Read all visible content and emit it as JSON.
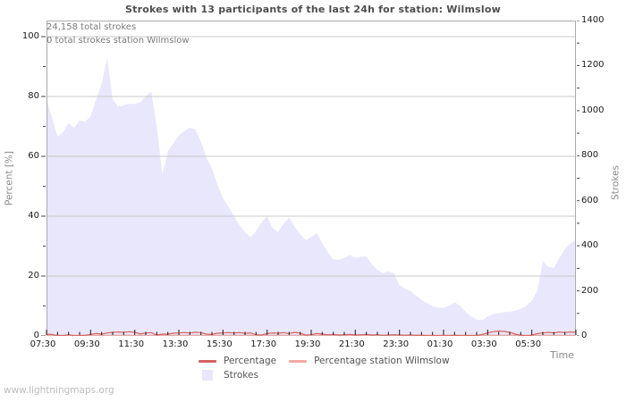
{
  "page": {
    "watermark": "www.lightningmaps.org"
  },
  "chart_data": {
    "type": "area",
    "title": "Strokes with 13 participants of the last 24h for station: Wilmslow",
    "annotations": [
      "24,158 total strokes",
      "0 total strokes station Wilmslow"
    ],
    "x_axis": {
      "label": "Time",
      "start": "07:30",
      "interval_minutes": 15,
      "points": 97,
      "tick_labels": [
        "07:30",
        "09:30",
        "11:30",
        "13:30",
        "15:30",
        "17:30",
        "19:30",
        "21:30",
        "23:30",
        "01:30",
        "03:30",
        "05:30"
      ],
      "tick_index_step": 8,
      "minor_tick_index_step": 2
    },
    "left_axis": {
      "label": "Percent [%]",
      "tick_labels": [
        "0",
        "20",
        "40",
        "60",
        "80",
        "100"
      ],
      "max": 100,
      "major_step": 20,
      "minor_step": 10,
      "top_fraction": 0.949
    },
    "right_axis": {
      "label": "Strokes",
      "tick_labels": [
        "0",
        "200",
        "400",
        "600",
        "800",
        "1000",
        "1200",
        "1400"
      ],
      "max": 1400,
      "major_step": 200,
      "minor_step": 100
    },
    "grid": {
      "color": "#c9c9c9",
      "frame_color": "#ababab",
      "x_tick_color": "#1a1a1a",
      "y_tick_color": "#444444"
    },
    "series": [
      {
        "name": "Strokes",
        "type": "area",
        "axis": "right",
        "color": "#e9e7fb",
        "values": [
          1050,
          970,
          885,
          905,
          944,
          924,
          957,
          950,
          975,
          1050,
          1120,
          1236,
          1050,
          1017,
          1024,
          1030,
          1030,
          1037,
          1064,
          1083,
          930,
          715,
          820,
          855,
          890,
          910,
          924,
          917,
          864,
          790,
          744,
          672,
          611,
          572,
          532,
          492,
          459,
          439,
          465,
          505,
          532,
          479,
          459,
          499,
          525,
          485,
          452,
          426,
          439,
          457,
          412,
          372,
          339,
          339,
          346,
          359,
          346,
          352,
          352,
          319,
          293,
          279,
          286,
          279,
          225,
          210,
          199,
          180,
          160,
          146,
          133,
          126,
          124,
          133,
          150,
          133,
          106,
          86,
          73,
          70,
          86,
          97,
          100,
          106,
          106,
          113,
          120,
          133,
          156,
          200,
          332,
          306,
          302,
          346,
          386,
          410,
          428
        ]
      },
      {
        "name": "Percentage",
        "type": "line",
        "axis": "left",
        "color": "#d4625f",
        "values": [
          0.6,
          0.5,
          0.1,
          0.1,
          0.4,
          0.1,
          0.1,
          0.2,
          0.5,
          0.8,
          0.6,
          1.0,
          1.2,
          1.3,
          1.2,
          1.4,
          1.2,
          0.7,
          1.0,
          1.1,
          0.3,
          0.6,
          0.6,
          0.9,
          1.0,
          1.1,
          1.0,
          1.2,
          1.1,
          0.6,
          0.5,
          0.9,
          1.0,
          1.1,
          1.0,
          1.1,
          0.9,
          1.0,
          0.4,
          0.3,
          0.8,
          1.0,
          0.9,
          1.1,
          0.8,
          1.2,
          0.9,
          0.3,
          0.4,
          0.8,
          0.6,
          0.4,
          0.5,
          0.3,
          0.4,
          0.5,
          0.3,
          0.4,
          0.5,
          0.3,
          0.4,
          0.2,
          0.3,
          0.4,
          0.3,
          0.2,
          0.3,
          0.2,
          0.2,
          0.1,
          0.1,
          0.1,
          0.1,
          0.1,
          0.2,
          0.1,
          0.1,
          0.1,
          0.1,
          0.5,
          1.0,
          1.4,
          1.6,
          1.5,
          1.2,
          0.6,
          0.2,
          0.1,
          0.2,
          0.8,
          1.0,
          1.2,
          1.0,
          1.3,
          1.1,
          1.3,
          1.2
        ]
      },
      {
        "name": "Percentage station Wilmslow",
        "type": "line",
        "axis": "left",
        "color": "#f2a9a6",
        "constant": 0
      }
    ]
  },
  "legend": {
    "rows": [
      [
        {
          "label": "Percentage",
          "swatch": "line",
          "color": "#d4625f"
        },
        {
          "label": "Percentage station Wilmslow",
          "swatch": "line",
          "color": "#f2a9a6"
        }
      ],
      [
        {
          "label": "Strokes",
          "swatch": "square",
          "color": "#e9e7fb"
        }
      ]
    ]
  }
}
